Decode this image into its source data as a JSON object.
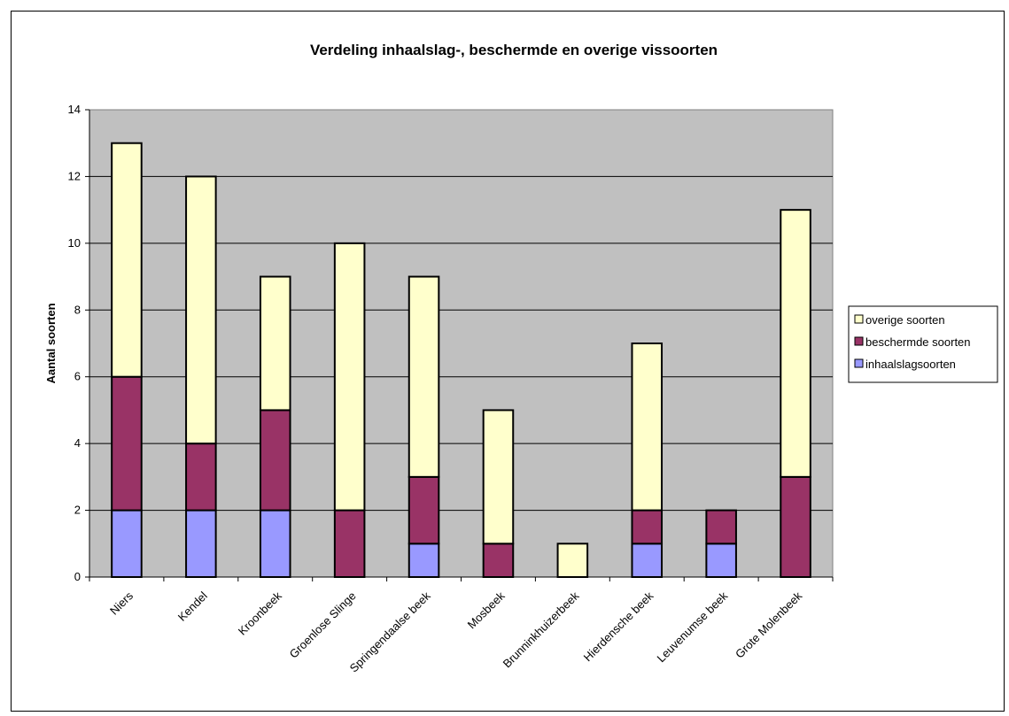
{
  "chart_data": {
    "type": "bar",
    "stacked": true,
    "title": "Verdeling inhaalslag-, beschermde en overige vissoorten",
    "xlabel": "",
    "ylabel": "Aantal soorten",
    "ylim": [
      0,
      14
    ],
    "yticks": [
      0,
      2,
      4,
      6,
      8,
      10,
      12,
      14
    ],
    "grid": true,
    "legend_position": "right",
    "categories": [
      "Niers",
      "Kendel",
      "Kroonbeek",
      "Groenlose Slinge",
      "Springendaalse beek",
      "Mosbeek",
      "Brunninkhuizerbeek",
      "Hierdensche beek",
      "Leuvenumse beek",
      "Grote Molenbeek"
    ],
    "series": [
      {
        "name": "inhaalslagsoorten",
        "color": "#9999ff",
        "values": [
          2,
          2,
          2,
          0,
          1,
          0,
          0,
          1,
          1,
          0
        ]
      },
      {
        "name": "beschermde soorten",
        "color": "#993366",
        "values": [
          4,
          2,
          3,
          2,
          2,
          1,
          0,
          1,
          1,
          3
        ]
      },
      {
        "name": "overige soorten",
        "color": "#ffffcc",
        "values": [
          7,
          8,
          4,
          8,
          6,
          4,
          1,
          5,
          0,
          8
        ]
      }
    ],
    "legend_order": [
      "overige soorten",
      "beschermde soorten",
      "inhaalslagsoorten"
    ],
    "plot_background": "#c0c0c0"
  }
}
